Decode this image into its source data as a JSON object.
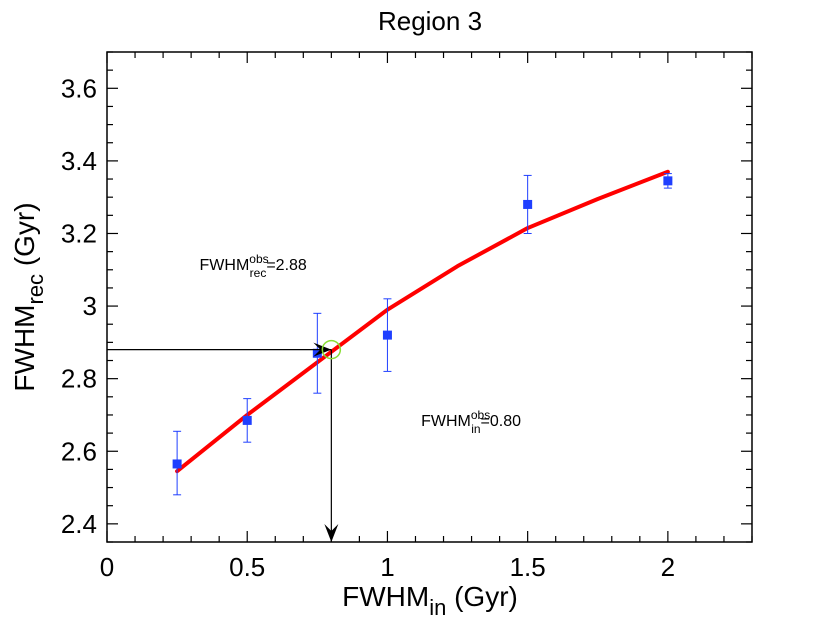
{
  "chart_data": {
    "type": "scatter",
    "title": "Region 3",
    "xlabel": {
      "main": "FWHM",
      "sub": "in",
      "unit": " (Gyr)"
    },
    "ylabel": {
      "main": "FWHM",
      "sub": "rec",
      "unit": " (Gyr)"
    },
    "xlim": [
      0,
      2.3
    ],
    "ylim": [
      2.35,
      3.7
    ],
    "x_ticks": [
      0,
      0.5,
      1,
      1.5,
      2
    ],
    "x_tick_labels": [
      "0",
      "0.5",
      "1",
      "1.5",
      "2"
    ],
    "y_ticks": [
      2.4,
      2.6,
      2.8,
      3.0,
      3.2,
      3.4,
      3.6
    ],
    "y_tick_labels": [
      "2.4",
      "2.6",
      "2.8",
      "3",
      "3.2",
      "3.4",
      "3.6"
    ],
    "series": [
      {
        "name": "measurements",
        "kind": "points_with_errorbars",
        "color": "#1f3fff",
        "points": [
          {
            "x": 0.25,
            "y": 2.565,
            "ylo": 2.48,
            "yhi": 2.655
          },
          {
            "x": 0.5,
            "y": 2.685,
            "ylo": 2.625,
            "yhi": 2.745
          },
          {
            "x": 0.75,
            "y": 2.87,
            "ylo": 2.76,
            "yhi": 2.98
          },
          {
            "x": 1.0,
            "y": 2.92,
            "ylo": 2.82,
            "yhi": 3.02
          },
          {
            "x": 1.5,
            "y": 3.28,
            "ylo": 3.2,
            "yhi": 3.36
          },
          {
            "x": 2.0,
            "y": 3.345,
            "ylo": 3.325,
            "yhi": 3.365
          }
        ]
      },
      {
        "name": "fit",
        "kind": "line",
        "color": "#ff0000",
        "x": [
          0.25,
          0.5,
          0.75,
          1.0,
          1.25,
          1.5,
          1.75,
          2.0
        ],
        "y": [
          2.545,
          2.7,
          2.845,
          2.99,
          3.11,
          3.215,
          3.295,
          3.37
        ]
      }
    ],
    "marker": {
      "x": 0.8,
      "y": 2.88,
      "color": "#88dd33"
    },
    "arrows": [
      {
        "from": [
          0.0,
          2.88
        ],
        "to": [
          0.8,
          2.88
        ]
      },
      {
        "from": [
          0.8,
          2.88
        ],
        "to": [
          0.8,
          2.35
        ]
      }
    ],
    "annotations": [
      {
        "main": "FWHM",
        "sub": "rec",
        "sup": "obs",
        "value": "=2.88",
        "x": 0.33,
        "y": 3.1
      },
      {
        "main": "FWHM",
        "sub": "in",
        "sup": "obs",
        "value": "=0.80",
        "x": 1.12,
        "y": 2.67
      }
    ]
  }
}
